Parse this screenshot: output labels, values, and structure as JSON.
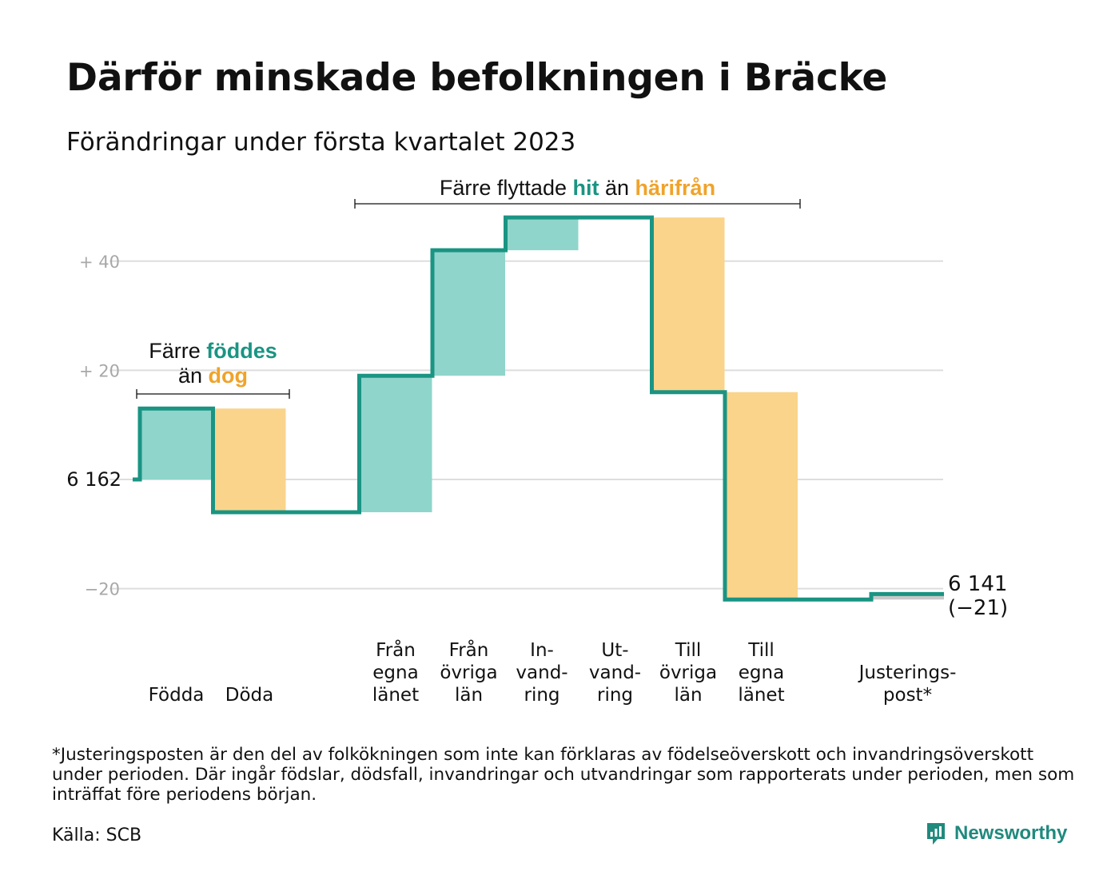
{
  "title": "Därför minskade befolkningen i Bräcke",
  "subtitle": "Förändringar under första kvartalet 2023",
  "annotations": {
    "births_deaths": {
      "pre": "Färre ",
      "teal": "föddes",
      "line2_pre": "än ",
      "orange": "dog"
    },
    "migration": {
      "pre": "Färre flyttade ",
      "teal": "hit",
      "mid": " än ",
      "orange": "härifrån"
    }
  },
  "chart_data": {
    "type": "waterfall",
    "start": {
      "value": 6162,
      "label": "6 162"
    },
    "end": {
      "value": 6141,
      "label": "6 141",
      "change_label": "(−21)"
    },
    "y_ticks": [
      {
        "value": 40,
        "label": "+ 40"
      },
      {
        "value": 20,
        "label": "+ 20"
      },
      {
        "value": 0,
        "label": ""
      },
      {
        "value": -20,
        "label": "−20"
      }
    ],
    "ylim": [
      -23,
      51
    ],
    "grid": true,
    "steps": [
      {
        "label": [
          "Födda"
        ],
        "value": 13
      },
      {
        "label": [
          "Döda"
        ],
        "value": -19
      },
      {
        "label": [
          "Från",
          "egna",
          "länet"
        ],
        "value": 25
      },
      {
        "label": [
          "Från",
          "övriga",
          "län"
        ],
        "value": 23
      },
      {
        "label": [
          "In-",
          "vand-",
          "ring"
        ],
        "value": 6
      },
      {
        "label": [
          "Ut-",
          "vand-",
          "ring"
        ],
        "value": 0
      },
      {
        "label": [
          "Till",
          "övriga",
          "län"
        ],
        "value": -32
      },
      {
        "label": [
          "Till",
          "egna",
          "länet"
        ],
        "value": -38
      },
      {
        "label": [
          "Justerings-",
          "post*"
        ],
        "value": 1
      }
    ],
    "colors": {
      "increase": "#8fd5cb",
      "decrease": "#fad48b",
      "adjustment": "#c8c8c8",
      "line": "#1a9483",
      "grid": "#dddddd",
      "tick": "#a8a8a8"
    }
  },
  "footnote": "*Justeringsposten är den del av folkökningen som inte kan förklaras av födelseöverskott och invandringsöverskott under perioden. Där ingår födslar, dödsfall, invandringar och utvandringar som rapporterats under perioden, men som inträffat före periodens början.",
  "source": "Källa: SCB",
  "brand": {
    "name": "Newsworthy",
    "icon": "newsworthy-logo-icon"
  }
}
